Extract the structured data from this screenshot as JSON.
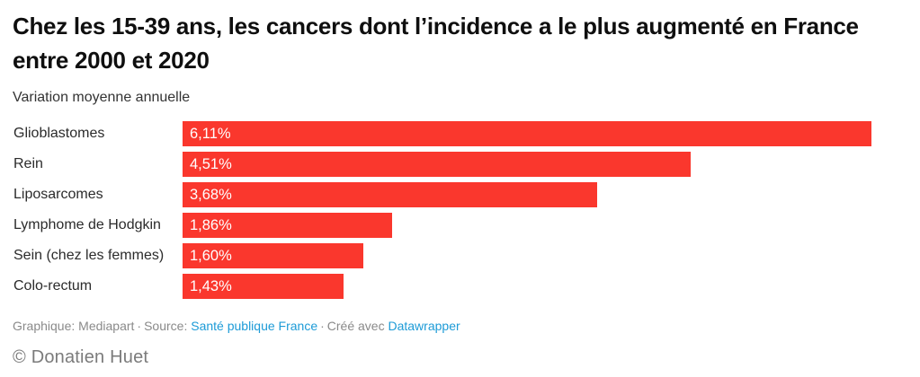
{
  "header": {
    "title": "Chez les 15-39 ans, les cancers dont l’incidence a le plus augmenté en France entre 2000 et 2020",
    "subtitle": "Variation moyenne annuelle"
  },
  "chart_data": {
    "type": "bar",
    "orientation": "horizontal",
    "title": "Chez les 15-39 ans, les cancers dont l’incidence a le plus augmenté en France entre 2000 et 2020",
    "subtitle": "Variation moyenne annuelle",
    "categories": [
      "Glioblastomes",
      "Rein",
      "Liposarcomes",
      "Lymphome de Hodgkin",
      "Sein (chez les femmes)",
      "Colo-rectum"
    ],
    "values": [
      6.11,
      4.51,
      3.68,
      1.86,
      1.6,
      1.43
    ],
    "value_labels": [
      "6,11%",
      "4,51%",
      "3,68%",
      "1,86%",
      "1,60%",
      "1,43%"
    ],
    "unit": "%",
    "xlim": [
      0,
      6.11
    ],
    "grid": false,
    "legend": false,
    "bar_color": "#fa372d",
    "value_label_color": "#ffffff"
  },
  "footer": {
    "credit": "Graphique: Mediapart",
    "separator": "·",
    "source_label": "Source:",
    "source_link": "Santé publique France",
    "created_with_label": "Créé avec",
    "created_with_link": "Datawrapper",
    "link_color": "#1d9bd7"
  },
  "copyright": "© Donatien Huet"
}
